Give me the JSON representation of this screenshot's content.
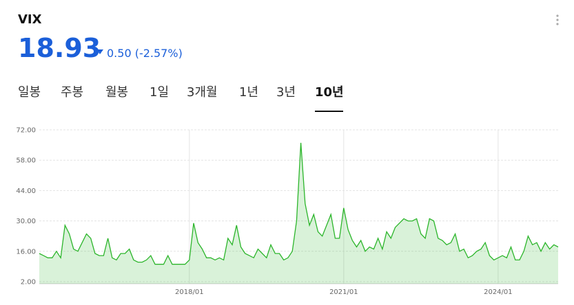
{
  "header": {
    "title": "VIX",
    "price": "18.93",
    "change": "0.50",
    "change_pct": "(-2.57%)"
  },
  "tabs": [
    "일봉",
    "주봉",
    "월봉",
    "1일",
    "3개월",
    "1년",
    "3년",
    "10년"
  ],
  "selected_tab": 7,
  "chart_data": {
    "type": "area",
    "color": "#2bb52a",
    "grid": true,
    "xlim": [
      "2015/02",
      "2025/03"
    ],
    "xticks": [
      "2018/01",
      "2021/01",
      "2024/01"
    ],
    "ylim": [
      2,
      72
    ],
    "yticks": [
      {
        "value": 2,
        "label": "2.00"
      },
      {
        "value": 16,
        "label": "16.00"
      },
      {
        "value": 30,
        "label": "30.00"
      },
      {
        "value": 44,
        "label": "44.00"
      },
      {
        "value": 58,
        "label": "58.00"
      },
      {
        "value": 72,
        "label": "72.00"
      }
    ],
    "x": [
      "2015/02",
      "2015/03",
      "2015/04",
      "2015/05",
      "2015/06",
      "2015/07",
      "2015/08",
      "2015/09",
      "2015/10",
      "2015/11",
      "2015/12",
      "2016/01",
      "2016/02",
      "2016/03",
      "2016/04",
      "2016/05",
      "2016/06",
      "2016/07",
      "2016/08",
      "2016/09",
      "2016/10",
      "2016/11",
      "2016/12",
      "2017/01",
      "2017/02",
      "2017/03",
      "2017/04",
      "2017/05",
      "2017/06",
      "2017/07",
      "2017/08",
      "2017/09",
      "2017/10",
      "2017/11",
      "2017/12",
      "2018/01",
      "2018/02",
      "2018/03",
      "2018/04",
      "2018/05",
      "2018/06",
      "2018/07",
      "2018/08",
      "2018/09",
      "2018/10",
      "2018/11",
      "2018/12",
      "2019/01",
      "2019/02",
      "2019/03",
      "2019/04",
      "2019/05",
      "2019/06",
      "2019/07",
      "2019/08",
      "2019/09",
      "2019/10",
      "2019/11",
      "2019/12",
      "2020/01",
      "2020/02",
      "2020/03",
      "2020/04",
      "2020/05",
      "2020/06",
      "2020/07",
      "2020/08",
      "2020/09",
      "2020/10",
      "2020/11",
      "2020/12",
      "2021/01",
      "2021/02",
      "2021/03",
      "2021/04",
      "2021/05",
      "2021/06",
      "2021/07",
      "2021/08",
      "2021/09",
      "2021/10",
      "2021/11",
      "2021/12",
      "2022/01",
      "2022/02",
      "2022/03",
      "2022/04",
      "2022/05",
      "2022/06",
      "2022/07",
      "2022/08",
      "2022/09",
      "2022/10",
      "2022/11",
      "2022/12",
      "2023/01",
      "2023/02",
      "2023/03",
      "2023/04",
      "2023/05",
      "2023/06",
      "2023/07",
      "2023/08",
      "2023/09",
      "2023/10",
      "2023/11",
      "2023/12",
      "2024/01",
      "2024/02",
      "2024/03",
      "2024/04",
      "2024/05",
      "2024/06",
      "2024/07",
      "2024/08",
      "2024/09",
      "2024/10",
      "2024/11",
      "2024/12",
      "2025/01",
      "2025/02",
      "2025/03"
    ],
    "values": [
      15,
      14,
      13,
      13,
      16,
      13,
      28,
      24,
      17,
      16,
      20,
      24,
      22,
      15,
      14,
      14,
      22,
      13,
      12,
      15,
      15,
      17,
      12,
      11,
      11,
      12,
      14,
      10,
      10,
      10,
      14,
      10,
      10,
      10,
      10,
      12,
      29,
      20,
      17,
      13,
      13,
      12,
      13,
      12,
      22,
      19,
      28,
      18,
      15,
      14,
      13,
      17,
      15,
      13,
      19,
      15,
      15,
      12,
      13,
      16,
      30,
      66,
      38,
      28,
      33,
      25,
      23,
      28,
      33,
      22,
      22,
      36,
      26,
      21,
      18,
      21,
      16,
      18,
      17,
      22,
      17,
      25,
      22,
      27,
      29,
      31,
      30,
      30,
      31,
      24,
      22,
      31,
      30,
      22,
      21,
      19,
      20,
      24,
      16,
      17,
      13,
      14,
      16,
      17,
      20,
      14,
      12,
      13,
      14,
      13,
      18,
      12,
      12,
      16,
      23,
      19,
      20,
      16,
      20,
      17,
      19,
      18
    ]
  }
}
